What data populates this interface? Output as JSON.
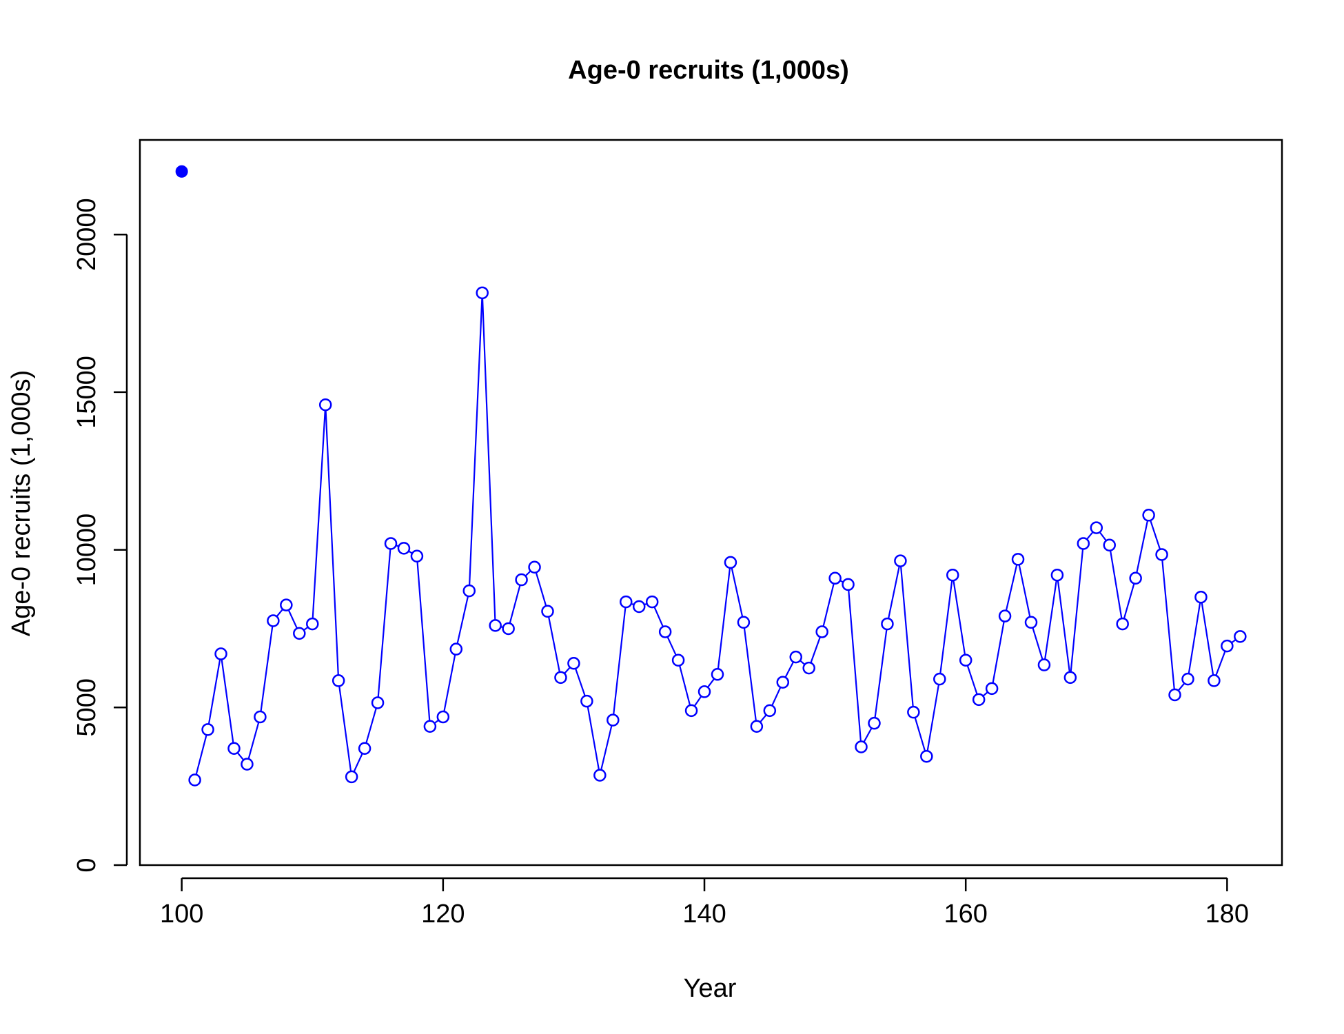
{
  "chart_data": {
    "type": "line",
    "title": "Age-0 recruits (1,000s)",
    "xlabel": "Year",
    "ylabel": "Age-0 recruits (1,000s)",
    "xlim": [
      96.8,
      184.2
    ],
    "ylim": [
      0,
      23000
    ],
    "x_ticks": [
      100,
      120,
      140,
      160,
      180
    ],
    "y_ticks": [
      0,
      5000,
      10000,
      15000,
      20000
    ],
    "grid": false,
    "legend": "none",
    "colors": {
      "series": "#0000ff",
      "axis": "#000000"
    },
    "initial_point": {
      "x": 100,
      "y": 22000,
      "marker": "filled-circle"
    },
    "series": [
      {
        "marker": "open-circle",
        "x": [
          101,
          102,
          103,
          104,
          105,
          106,
          107,
          108,
          109,
          110,
          111,
          112,
          113,
          114,
          115,
          116,
          117,
          118,
          119,
          120,
          121,
          122,
          123,
          124,
          125,
          126,
          127,
          128,
          129,
          130,
          131,
          132,
          133,
          134,
          135,
          136,
          137,
          138,
          139,
          140,
          141,
          142,
          143,
          144,
          145,
          146,
          147,
          148,
          149,
          150,
          151,
          152,
          153,
          154,
          155,
          156,
          157,
          158,
          159,
          160,
          161,
          162,
          163,
          164,
          165,
          166,
          167,
          168,
          169,
          170,
          171,
          172,
          173,
          174,
          175,
          176,
          177,
          178,
          179,
          180,
          181
        ],
        "values": [
          2700,
          4300,
          6700,
          3700,
          3200,
          4700,
          7750,
          8250,
          7350,
          7650,
          14600,
          5850,
          2800,
          3700,
          5150,
          10200,
          10050,
          9800,
          4400,
          4700,
          6850,
          8700,
          18150,
          7600,
          7500,
          9050,
          9450,
          8050,
          5950,
          6400,
          5200,
          2850,
          4600,
          8350,
          8200,
          8350,
          7400,
          6500,
          4900,
          5500,
          6050,
          9600,
          7700,
          4400,
          4900,
          5800,
          6600,
          6250,
          7400,
          9100,
          8900,
          3750,
          4500,
          7650,
          9650,
          4850,
          3450,
          5900,
          9200,
          6500,
          5250,
          5600,
          7900,
          9700,
          7700,
          6350,
          9200,
          5950,
          10200,
          10700,
          10150,
          7650,
          9100,
          11100,
          9850,
          5400,
          5900,
          8500,
          5850,
          6950,
          7250
        ]
      }
    ]
  }
}
